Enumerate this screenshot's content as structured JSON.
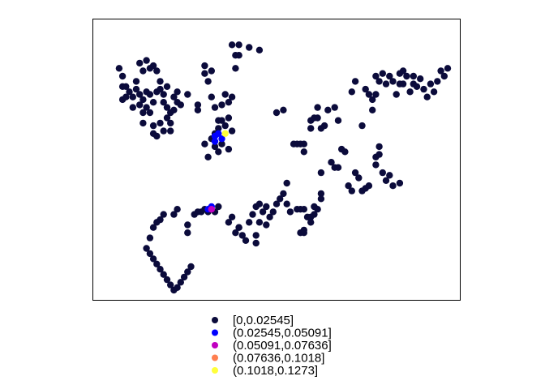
{
  "chart_data": {
    "type": "scatter",
    "title": "",
    "xlabel": "",
    "ylabel": "",
    "axes_shown": false,
    "frame": true,
    "grid": false,
    "legend_position": "bottom",
    "legend": [
      {
        "label": "[0,0.02545]",
        "color": "#0b0b3b"
      },
      {
        "label": "(0.02545,0.05091]",
        "color": "#0000ff"
      },
      {
        "label": "(0.05091,0.07636]",
        "color": "#c000c0"
      },
      {
        "label": "(0.07636,0.1018]",
        "color": "#ff7f50"
      },
      {
        "label": "(0.1018,0.1273]",
        "color": "#ffff3a"
      }
    ],
    "series": [
      {
        "class": 0,
        "points": [
          [
            0.04,
            0.85
          ],
          [
            0.05,
            0.82
          ],
          [
            0.05,
            0.78
          ],
          [
            0.05,
            0.73
          ],
          [
            0.06,
            0.78
          ],
          [
            0.06,
            0.74
          ],
          [
            0.07,
            0.76
          ],
          [
            0.08,
            0.74
          ],
          [
            0.08,
            0.7
          ],
          [
            0.09,
            0.8
          ],
          [
            0.09,
            0.77
          ],
          [
            0.1,
            0.71
          ],
          [
            0.1,
            0.75
          ],
          [
            0.11,
            0.73
          ],
          [
            0.12,
            0.76
          ],
          [
            0.12,
            0.7
          ],
          [
            0.13,
            0.75
          ],
          [
            0.13,
            0.68
          ],
          [
            0.14,
            0.72
          ],
          [
            0.1,
            0.87
          ],
          [
            0.11,
            0.84
          ],
          [
            0.12,
            0.88
          ],
          [
            0.13,
            0.85
          ],
          [
            0.14,
            0.86
          ],
          [
            0.15,
            0.84
          ],
          [
            0.15,
            0.76
          ],
          [
            0.16,
            0.8
          ],
          [
            0.16,
            0.77
          ],
          [
            0.17,
            0.75
          ],
          [
            0.17,
            0.72
          ],
          [
            0.18,
            0.7
          ],
          [
            0.18,
            0.66
          ],
          [
            0.19,
            0.68
          ],
          [
            0.19,
            0.64
          ],
          [
            0.2,
            0.74
          ],
          [
            0.2,
            0.69
          ],
          [
            0.21,
            0.76
          ],
          [
            0.21,
            0.72
          ],
          [
            0.22,
            0.71
          ],
          [
            0.18,
            0.78
          ],
          [
            0.16,
            0.64
          ],
          [
            0.11,
            0.64
          ],
          [
            0.11,
            0.68
          ],
          [
            0.14,
            0.63
          ],
          [
            0.14,
            0.6
          ],
          [
            0.15,
            0.59
          ],
          [
            0.17,
            0.61
          ],
          [
            0.19,
            0.61
          ],
          [
            0.24,
            0.75
          ],
          [
            0.27,
            0.71
          ],
          [
            0.27,
            0.69
          ],
          [
            0.29,
            0.86
          ],
          [
            0.29,
            0.83
          ],
          [
            0.3,
            0.8
          ],
          [
            0.31,
            0.84
          ],
          [
            0.31,
            0.74
          ],
          [
            0.32,
            0.7
          ],
          [
            0.33,
            0.65
          ],
          [
            0.34,
            0.71
          ],
          [
            0.34,
            0.65
          ],
          [
            0.35,
            0.75
          ],
          [
            0.36,
            0.72
          ],
          [
            0.37,
            0.74
          ],
          [
            0.36,
            0.66
          ],
          [
            0.36,
            0.54
          ],
          [
            0.35,
            0.63
          ],
          [
            0.31,
            0.58
          ],
          [
            0.32,
            0.55
          ],
          [
            0.33,
            0.53
          ],
          [
            0.34,
            0.56
          ],
          [
            0.3,
            0.51
          ],
          [
            0.29,
            0.56
          ],
          [
            0.32,
            0.6
          ],
          [
            0.33,
            0.62
          ],
          [
            0.37,
            0.61
          ],
          [
            0.37,
            0.94
          ],
          [
            0.38,
            0.9
          ],
          [
            0.39,
            0.94
          ],
          [
            0.39,
            0.9
          ],
          [
            0.38,
            0.85
          ],
          [
            0.42,
            0.93
          ],
          [
            0.45,
            0.92
          ],
          [
            0.5,
            0.68
          ],
          [
            0.52,
            0.69
          ],
          [
            0.55,
            0.56
          ],
          [
            0.56,
            0.56
          ],
          [
            0.57,
            0.56
          ],
          [
            0.58,
            0.56
          ],
          [
            0.58,
            0.53
          ],
          [
            0.6,
            0.62
          ],
          [
            0.6,
            0.65
          ],
          [
            0.61,
            0.66
          ],
          [
            0.62,
            0.66
          ],
          [
            0.62,
            0.7
          ],
          [
            0.63,
            0.62
          ],
          [
            0.64,
            0.63
          ],
          [
            0.65,
            0.69
          ],
          [
            0.67,
            0.7
          ],
          [
            0.68,
            0.65
          ],
          [
            0.69,
            0.54
          ],
          [
            0.7,
            0.53
          ],
          [
            0.72,
            0.76
          ],
          [
            0.73,
            0.8
          ],
          [
            0.75,
            0.63
          ],
          [
            0.76,
            0.77
          ],
          [
            0.77,
            0.75
          ],
          [
            0.78,
            0.69
          ],
          [
            0.78,
            0.73
          ],
          [
            0.79,
            0.75
          ],
          [
            0.79,
            0.82
          ],
          [
            0.8,
            0.8
          ],
          [
            0.81,
            0.83
          ],
          [
            0.82,
            0.79
          ],
          [
            0.83,
            0.82
          ],
          [
            0.84,
            0.8
          ],
          [
            0.85,
            0.75
          ],
          [
            0.86,
            0.83
          ],
          [
            0.86,
            0.79
          ],
          [
            0.87,
            0.84
          ],
          [
            0.87,
            0.79
          ],
          [
            0.88,
            0.82
          ],
          [
            0.89,
            0.76
          ],
          [
            0.9,
            0.79
          ],
          [
            0.9,
            0.82
          ],
          [
            0.91,
            0.78
          ],
          [
            0.92,
            0.81
          ],
          [
            0.93,
            0.77
          ],
          [
            0.94,
            0.74
          ],
          [
            0.95,
            0.79
          ],
          [
            0.96,
            0.76
          ],
          [
            0.97,
            0.8
          ],
          [
            0.98,
            0.84
          ],
          [
            0.99,
            0.82
          ],
          [
            1.0,
            0.85
          ],
          [
            0.63,
            0.45
          ],
          [
            0.66,
            0.49
          ],
          [
            0.67,
            0.47
          ],
          [
            0.68,
            0.47
          ],
          [
            0.71,
            0.4
          ],
          [
            0.72,
            0.38
          ],
          [
            0.73,
            0.45
          ],
          [
            0.74,
            0.43
          ],
          [
            0.75,
            0.38
          ],
          [
            0.76,
            0.39
          ],
          [
            0.77,
            0.4
          ],
          [
            0.79,
            0.48
          ],
          [
            0.79,
            0.51
          ],
          [
            0.8,
            0.55
          ],
          [
            0.8,
            0.52
          ],
          [
            0.81,
            0.45
          ],
          [
            0.82,
            0.42
          ],
          [
            0.83,
            0.44
          ],
          [
            0.84,
            0.4
          ],
          [
            0.86,
            0.41
          ],
          [
            0.53,
            0.33
          ],
          [
            0.54,
            0.3
          ],
          [
            0.56,
            0.31
          ],
          [
            0.57,
            0.31
          ],
          [
            0.58,
            0.31
          ],
          [
            0.59,
            0.28
          ],
          [
            0.6,
            0.26
          ],
          [
            0.61,
            0.29
          ],
          [
            0.61,
            0.32
          ],
          [
            0.62,
            0.31
          ],
          [
            0.63,
            0.37
          ],
          [
            0.63,
            0.35
          ],
          [
            0.47,
            0.25
          ],
          [
            0.48,
            0.28
          ],
          [
            0.49,
            0.3
          ],
          [
            0.5,
            0.33
          ],
          [
            0.51,
            0.35
          ],
          [
            0.52,
            0.37
          ],
          [
            0.53,
            0.41
          ],
          [
            0.57,
            0.22
          ],
          [
            0.58,
            0.22
          ],
          [
            0.6,
            0.28
          ],
          [
            0.58,
            0.23
          ],
          [
            0.47,
            0.32
          ],
          [
            0.46,
            0.3
          ],
          [
            0.45,
            0.33
          ],
          [
            0.44,
            0.32
          ],
          [
            0.42,
            0.26
          ],
          [
            0.43,
            0.29
          ],
          [
            0.45,
            0.26
          ],
          [
            0.4,
            0.21
          ],
          [
            0.41,
            0.19
          ],
          [
            0.44,
            0.18
          ],
          [
            0.44,
            0.21
          ],
          [
            0.39,
            0.24
          ],
          [
            0.39,
            0.24
          ],
          [
            0.38,
            0.22
          ],
          [
            0.37,
            0.28
          ],
          [
            0.36,
            0.26
          ],
          [
            0.33,
            0.32
          ],
          [
            0.32,
            0.3
          ],
          [
            0.3,
            0.3
          ],
          [
            0.29,
            0.31
          ],
          [
            0.28,
            0.3
          ],
          [
            0.27,
            0.3
          ],
          [
            0.26,
            0.29
          ],
          [
            0.24,
            0.25
          ],
          [
            0.24,
            0.22
          ],
          [
            0.21,
            0.31
          ],
          [
            0.2,
            0.29
          ],
          [
            0.17,
            0.29
          ],
          [
            0.16,
            0.27
          ],
          [
            0.15,
            0.26
          ],
          [
            0.14,
            0.24
          ],
          [
            0.13,
            0.2
          ],
          [
            0.12,
            0.16
          ],
          [
            0.13,
            0.14
          ],
          [
            0.14,
            0.12
          ],
          [
            0.15,
            0.1
          ],
          [
            0.16,
            0.08
          ],
          [
            0.17,
            0.06
          ],
          [
            0.18,
            0.04
          ],
          [
            0.19,
            0.02
          ],
          [
            0.2,
            0.0
          ],
          [
            0.21,
            0.01
          ],
          [
            0.22,
            0.03
          ],
          [
            0.23,
            0.05
          ],
          [
            0.24,
            0.07
          ],
          [
            0.25,
            0.09
          ]
        ]
      },
      {
        "class": 1,
        "points": [
          [
            0.32,
            0.59
          ],
          [
            0.33,
            0.6
          ],
          [
            0.32,
            0.57
          ],
          [
            0.34,
            0.58
          ],
          [
            0.3,
            0.31
          ],
          [
            0.31,
            0.32
          ]
        ]
      },
      {
        "class": 2,
        "points": [
          [
            0.31,
            0.31
          ]
        ]
      },
      {
        "class": 4,
        "points": [
          [
            0.35,
            0.6
          ]
        ]
      }
    ]
  }
}
